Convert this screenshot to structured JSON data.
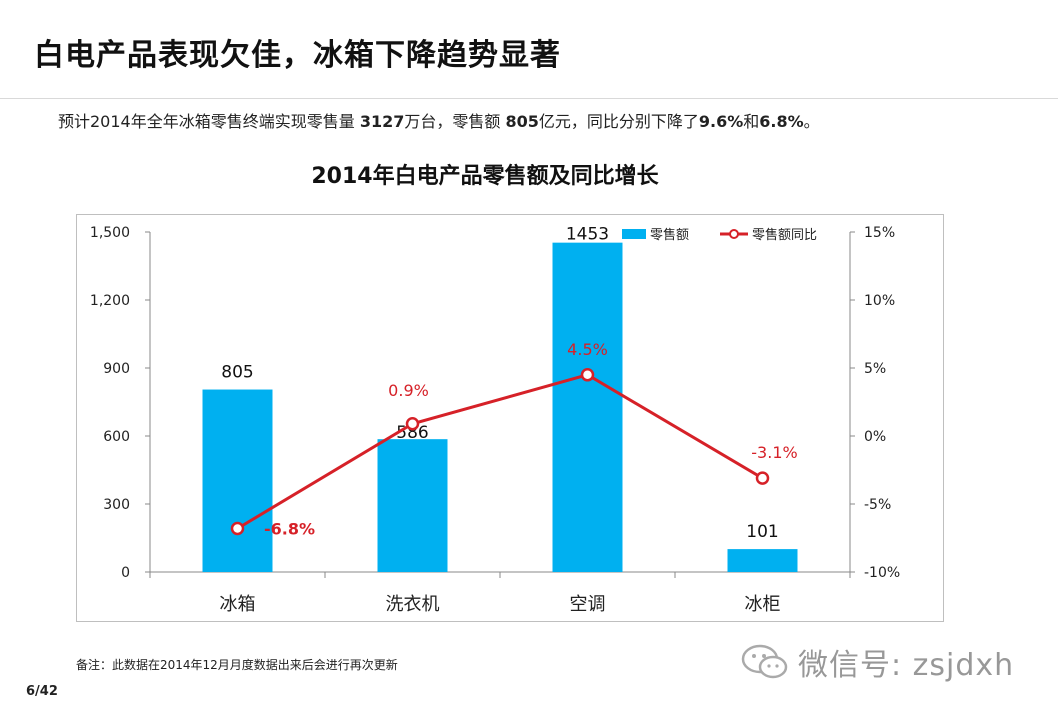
{
  "slide": {
    "title": "白电产品表现欠佳，冰箱下降趋势显著",
    "subtitle_pre": "预计2014年全年冰箱零售终端实现零售量 ",
    "subtitle_b1": "3127",
    "subtitle_mid1": "万台，零售额 ",
    "subtitle_b2": "805",
    "subtitle_mid2": "亿元，同比分别下降了",
    "subtitle_b3": "9.6%",
    "subtitle_mid3": "和",
    "subtitle_b4": "6.8%",
    "subtitle_end": "。",
    "note": "备注：此数据在2014年12月月度数据出来后会进行再次更新",
    "page": "6/42",
    "watermark": "微信号: zsjdxh"
  },
  "colors": {
    "bar": "#00b0f0",
    "line": "#d62128",
    "axis": "#888888",
    "label_line": "#d62128"
  },
  "chart_data": {
    "type": "bar",
    "title": "2014年白电产品零售额及同比增长",
    "categories": [
      "冰箱",
      "洗衣机",
      "空调",
      "冰柜"
    ],
    "series": [
      {
        "name": "零售额",
        "type": "bar",
        "axis": "left",
        "values": [
          805,
          586,
          1453,
          101
        ],
        "labels": [
          "805",
          "586",
          "1453",
          "101"
        ]
      },
      {
        "name": "零售额同比",
        "type": "line",
        "axis": "right",
        "values": [
          -6.8,
          0.9,
          4.5,
          -3.1
        ],
        "labels": [
          "-6.8%",
          "0.9%",
          "4.5%",
          "-3.1%"
        ]
      }
    ],
    "y_left": {
      "min": 0,
      "max": 1500,
      "ticks": [
        0,
        300,
        600,
        900,
        1200,
        1500
      ],
      "tick_labels": [
        "0",
        "300",
        "600",
        "900",
        "1,200",
        "1,500"
      ]
    },
    "y_right": {
      "min": -10,
      "max": 15,
      "ticks": [
        -10,
        -5,
        0,
        5,
        10,
        15
      ],
      "tick_labels": [
        "-10%",
        "-5%",
        "0%",
        "5%",
        "10%",
        "15%"
      ]
    },
    "legend_position": "top-right",
    "grid": false
  }
}
